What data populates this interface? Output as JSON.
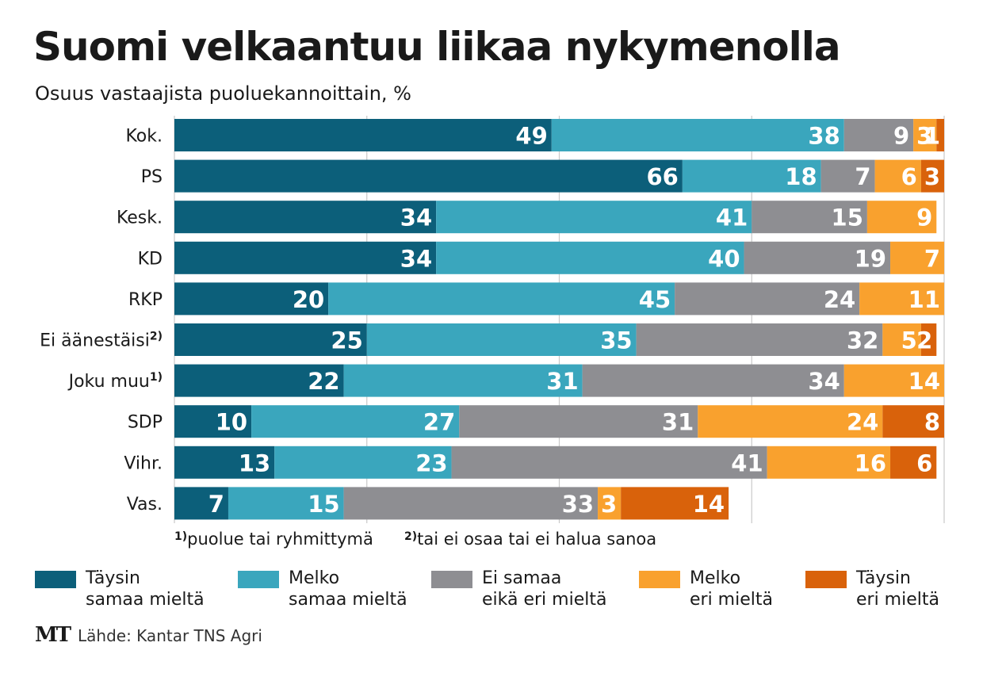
{
  "title": "Suomi velkaantuu liikaa nykymenolla",
  "subtitle": "Osuus vastaajista puoluekannoittain, %",
  "notes": [
    {
      "mark": "1)",
      "text": "puolue tai ryhmittymä"
    },
    {
      "mark": "2)",
      "text": "tai ei osaa tai ei halua sanoa"
    }
  ],
  "source": "Lähde: Kantar TNS Agri",
  "logo": "MT",
  "chart_data": {
    "type": "bar",
    "orientation": "horizontal",
    "stacked": true,
    "title": "Suomi velkaantuu liikaa nykymenolla",
    "subtitle": "Osuus vastaajista puoluekannoittain, %",
    "xlim": [
      0,
      100
    ],
    "grid": true,
    "legend_position": "bottom",
    "categories": [
      {
        "label": "Kok.",
        "sup": ""
      },
      {
        "label": "PS",
        "sup": ""
      },
      {
        "label": "Kesk.",
        "sup": ""
      },
      {
        "label": "KD",
        "sup": ""
      },
      {
        "label": "RKP",
        "sup": ""
      },
      {
        "label": "Ei äänestäisi",
        "sup": "2)"
      },
      {
        "label": "Joku muu",
        "sup": "1)"
      },
      {
        "label": "SDP",
        "sup": ""
      },
      {
        "label": "Vihr.",
        "sup": ""
      },
      {
        "label": "Vas.",
        "sup": ""
      }
    ],
    "series": [
      {
        "name": "Täysin samaa mieltä",
        "legend_lines": [
          "Täysin",
          "samaa mieltä"
        ],
        "color": "#0c5f7a",
        "values": [
          49,
          66,
          34,
          34,
          20,
          25,
          22,
          10,
          13,
          7
        ]
      },
      {
        "name": "Melko samaa mieltä",
        "legend_lines": [
          "Melko",
          "samaa mieltä"
        ],
        "color": "#3aa6bd",
        "values": [
          38,
          18,
          41,
          40,
          45,
          35,
          31,
          27,
          23,
          15
        ]
      },
      {
        "name": "Ei samaa eikä eri mieltä",
        "legend_lines": [
          "Ei samaa",
          "eikä eri mieltä"
        ],
        "color": "#8e8e92",
        "values": [
          9,
          7,
          15,
          19,
          24,
          32,
          34,
          31,
          41,
          33
        ]
      },
      {
        "name": "Melko eri mieltä",
        "legend_lines": [
          "Melko",
          "eri mieltä"
        ],
        "color": "#f9a12e",
        "values": [
          3,
          6,
          9,
          7,
          11,
          5,
          14,
          24,
          16,
          3
        ]
      },
      {
        "name": "Täysin eri mieltä",
        "legend_lines": [
          "Täysin",
          "eri mieltä"
        ],
        "color": "#d9620b",
        "values": [
          1,
          3,
          null,
          null,
          null,
          2,
          null,
          8,
          6,
          14
        ]
      }
    ]
  }
}
